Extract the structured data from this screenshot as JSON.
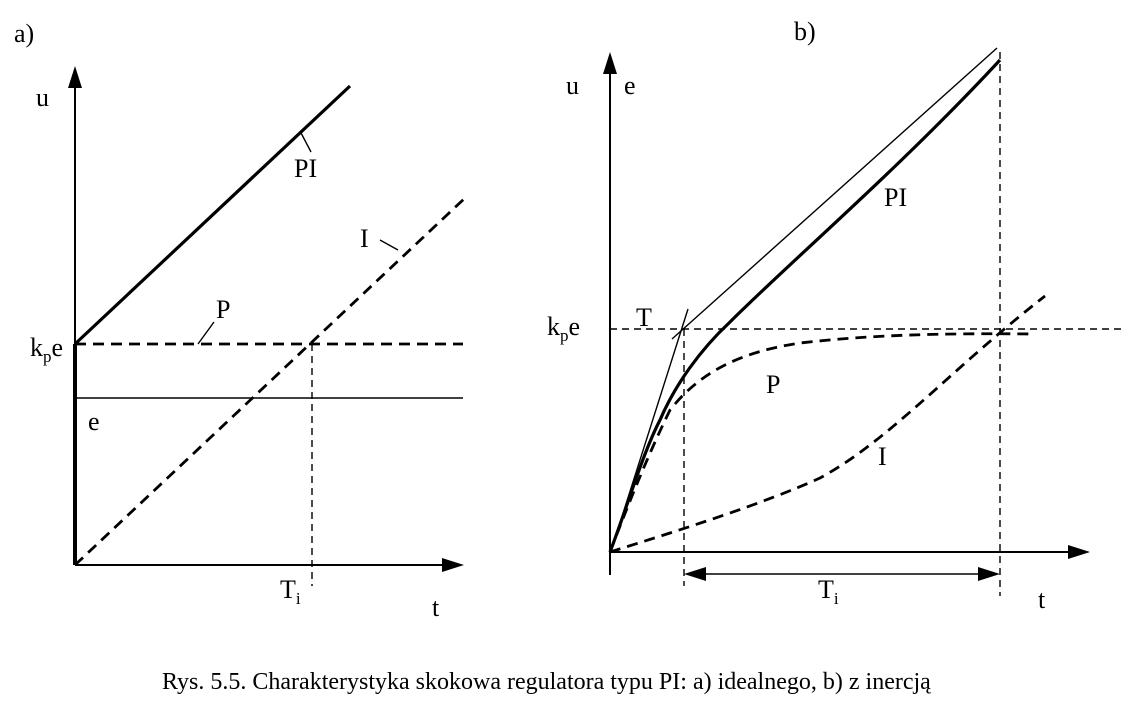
{
  "panel_a": {
    "tag": "a)",
    "y_axis_label": "u",
    "x_axis_label": "t",
    "level_main": "k",
    "level_sub": "p",
    "level_tail": "e",
    "step_label": "e",
    "curve_pi": "PI",
    "curve_i": "I",
    "curve_p": "P",
    "time_main": "T",
    "time_sub": "i"
  },
  "panel_b": {
    "tag": "b)",
    "y_axis_label_u": "u",
    "y_axis_label_e": "e",
    "x_axis_label": "t",
    "level_main": "k",
    "level_sub": "p",
    "level_tail": "e",
    "time_const": "T",
    "curve_pi": "PI",
    "curve_p": "P",
    "curve_i": "I",
    "time_main": "T",
    "time_sub": "i"
  },
  "caption": "Rys. 5.5. Charakterystyka skokowa regulatora typu PI: a) idealnego, b) z inercją"
}
